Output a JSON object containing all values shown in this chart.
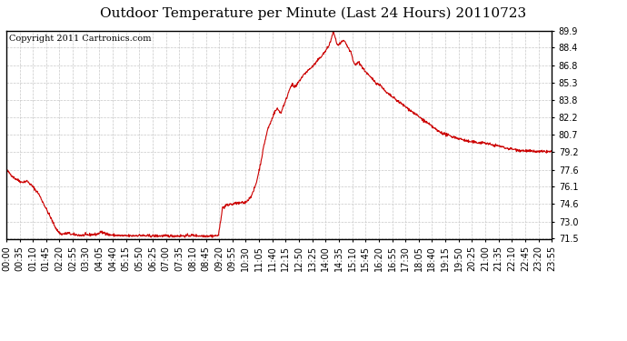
{
  "title": "Outdoor Temperature per Minute (Last 24 Hours) 20110723",
  "copyright": "Copyright 2011 Cartronics.com",
  "line_color": "#cc0000",
  "background_color": "#ffffff",
  "grid_color": "#c8c8c8",
  "yticks": [
    71.5,
    73.0,
    74.6,
    76.1,
    77.6,
    79.2,
    80.7,
    82.2,
    83.8,
    85.3,
    86.8,
    88.4,
    89.9
  ],
  "ylim": [
    71.5,
    89.9
  ],
  "xtick_labels": [
    "00:00",
    "00:35",
    "01:10",
    "01:45",
    "02:20",
    "02:55",
    "03:30",
    "04:05",
    "04:40",
    "05:15",
    "05:50",
    "06:25",
    "07:00",
    "07:35",
    "08:10",
    "08:45",
    "09:20",
    "09:55",
    "10:30",
    "11:05",
    "11:40",
    "12:15",
    "12:50",
    "13:25",
    "14:00",
    "14:35",
    "15:10",
    "15:45",
    "16:20",
    "16:55",
    "17:30",
    "18:05",
    "18:40",
    "19:15",
    "19:50",
    "20:25",
    "21:00",
    "21:35",
    "22:10",
    "22:45",
    "23:20",
    "23:55"
  ],
  "waypoints": [
    [
      0,
      77.6
    ],
    [
      20,
      76.9
    ],
    [
      40,
      76.5
    ],
    [
      55,
      76.6
    ],
    [
      70,
      76.1
    ],
    [
      85,
      75.5
    ],
    [
      100,
      74.5
    ],
    [
      115,
      73.5
    ],
    [
      125,
      72.8
    ],
    [
      135,
      72.2
    ],
    [
      145,
      71.9
    ],
    [
      155,
      71.95
    ],
    [
      165,
      72.0
    ],
    [
      170,
      71.9
    ],
    [
      180,
      71.85
    ],
    [
      200,
      71.8
    ],
    [
      220,
      71.85
    ],
    [
      240,
      71.9
    ],
    [
      250,
      72.1
    ],
    [
      255,
      72.0
    ],
    [
      260,
      72.05
    ],
    [
      270,
      71.85
    ],
    [
      290,
      71.8
    ],
    [
      310,
      71.75
    ],
    [
      330,
      71.75
    ],
    [
      350,
      71.8
    ],
    [
      370,
      71.75
    ],
    [
      390,
      71.75
    ],
    [
      410,
      71.75
    ],
    [
      430,
      71.75
    ],
    [
      450,
      71.75
    ],
    [
      470,
      71.75
    ],
    [
      490,
      71.8
    ],
    [
      510,
      71.75
    ],
    [
      530,
      71.75
    ],
    [
      550,
      71.75
    ],
    [
      560,
      71.8
    ],
    [
      570,
      74.2
    ],
    [
      575,
      74.3
    ],
    [
      580,
      74.5
    ],
    [
      585,
      74.4
    ],
    [
      590,
      74.6
    ],
    [
      595,
      74.5
    ],
    [
      600,
      74.6
    ],
    [
      610,
      74.65
    ],
    [
      615,
      74.6
    ],
    [
      620,
      74.7
    ],
    [
      625,
      74.65
    ],
    [
      630,
      74.7
    ],
    [
      640,
      75.0
    ],
    [
      650,
      75.5
    ],
    [
      660,
      76.5
    ],
    [
      670,
      78.0
    ],
    [
      680,
      79.8
    ],
    [
      690,
      81.2
    ],
    [
      700,
      82.0
    ],
    [
      705,
      82.5
    ],
    [
      710,
      82.8
    ],
    [
      715,
      83.0
    ],
    [
      720,
      82.8
    ],
    [
      725,
      82.6
    ],
    [
      730,
      83.2
    ],
    [
      735,
      83.5
    ],
    [
      740,
      84.0
    ],
    [
      745,
      84.5
    ],
    [
      750,
      85.0
    ],
    [
      755,
      85.1
    ],
    [
      760,
      84.9
    ],
    [
      765,
      85.0
    ],
    [
      770,
      85.3
    ],
    [
      780,
      85.8
    ],
    [
      790,
      86.2
    ],
    [
      800,
      86.5
    ],
    [
      810,
      86.8
    ],
    [
      820,
      87.2
    ],
    [
      830,
      87.6
    ],
    [
      840,
      88.0
    ],
    [
      850,
      88.5
    ],
    [
      855,
      88.9
    ],
    [
      860,
      89.5
    ],
    [
      863,
      89.9
    ],
    [
      865,
      89.6
    ],
    [
      868,
      89.2
    ],
    [
      870,
      89.0
    ],
    [
      872,
      88.8
    ],
    [
      875,
      88.6
    ],
    [
      880,
      88.7
    ],
    [
      885,
      88.9
    ],
    [
      890,
      89.0
    ],
    [
      895,
      88.8
    ],
    [
      900,
      88.5
    ],
    [
      905,
      88.2
    ],
    [
      910,
      87.9
    ],
    [
      915,
      87.2
    ],
    [
      920,
      86.9
    ],
    [
      925,
      87.0
    ],
    [
      930,
      87.1
    ],
    [
      935,
      86.9
    ],
    [
      940,
      86.6
    ],
    [
      950,
      86.2
    ],
    [
      960,
      85.8
    ],
    [
      970,
      85.5
    ],
    [
      975,
      85.3
    ],
    [
      980,
      85.2
    ],
    [
      990,
      85.0
    ],
    [
      1000,
      84.5
    ],
    [
      1020,
      84.0
    ],
    [
      1040,
      83.5
    ],
    [
      1060,
      83.0
    ],
    [
      1080,
      82.5
    ],
    [
      1100,
      82.0
    ],
    [
      1120,
      81.5
    ],
    [
      1140,
      81.0
    ],
    [
      1160,
      80.7
    ],
    [
      1180,
      80.5
    ],
    [
      1200,
      80.3
    ],
    [
      1220,
      80.1
    ],
    [
      1240,
      80.0
    ],
    [
      1260,
      80.0
    ],
    [
      1280,
      79.8
    ],
    [
      1300,
      79.7
    ],
    [
      1320,
      79.5
    ],
    [
      1340,
      79.4
    ],
    [
      1360,
      79.3
    ],
    [
      1380,
      79.25
    ],
    [
      1400,
      79.2
    ],
    [
      1420,
      79.2
    ],
    [
      1439,
      79.2
    ]
  ],
  "noise_seed": 42,
  "noise_std": 0.06,
  "line_width": 0.8,
  "title_fontsize": 11,
  "tick_fontsize": 7,
  "copyright_fontsize": 7
}
